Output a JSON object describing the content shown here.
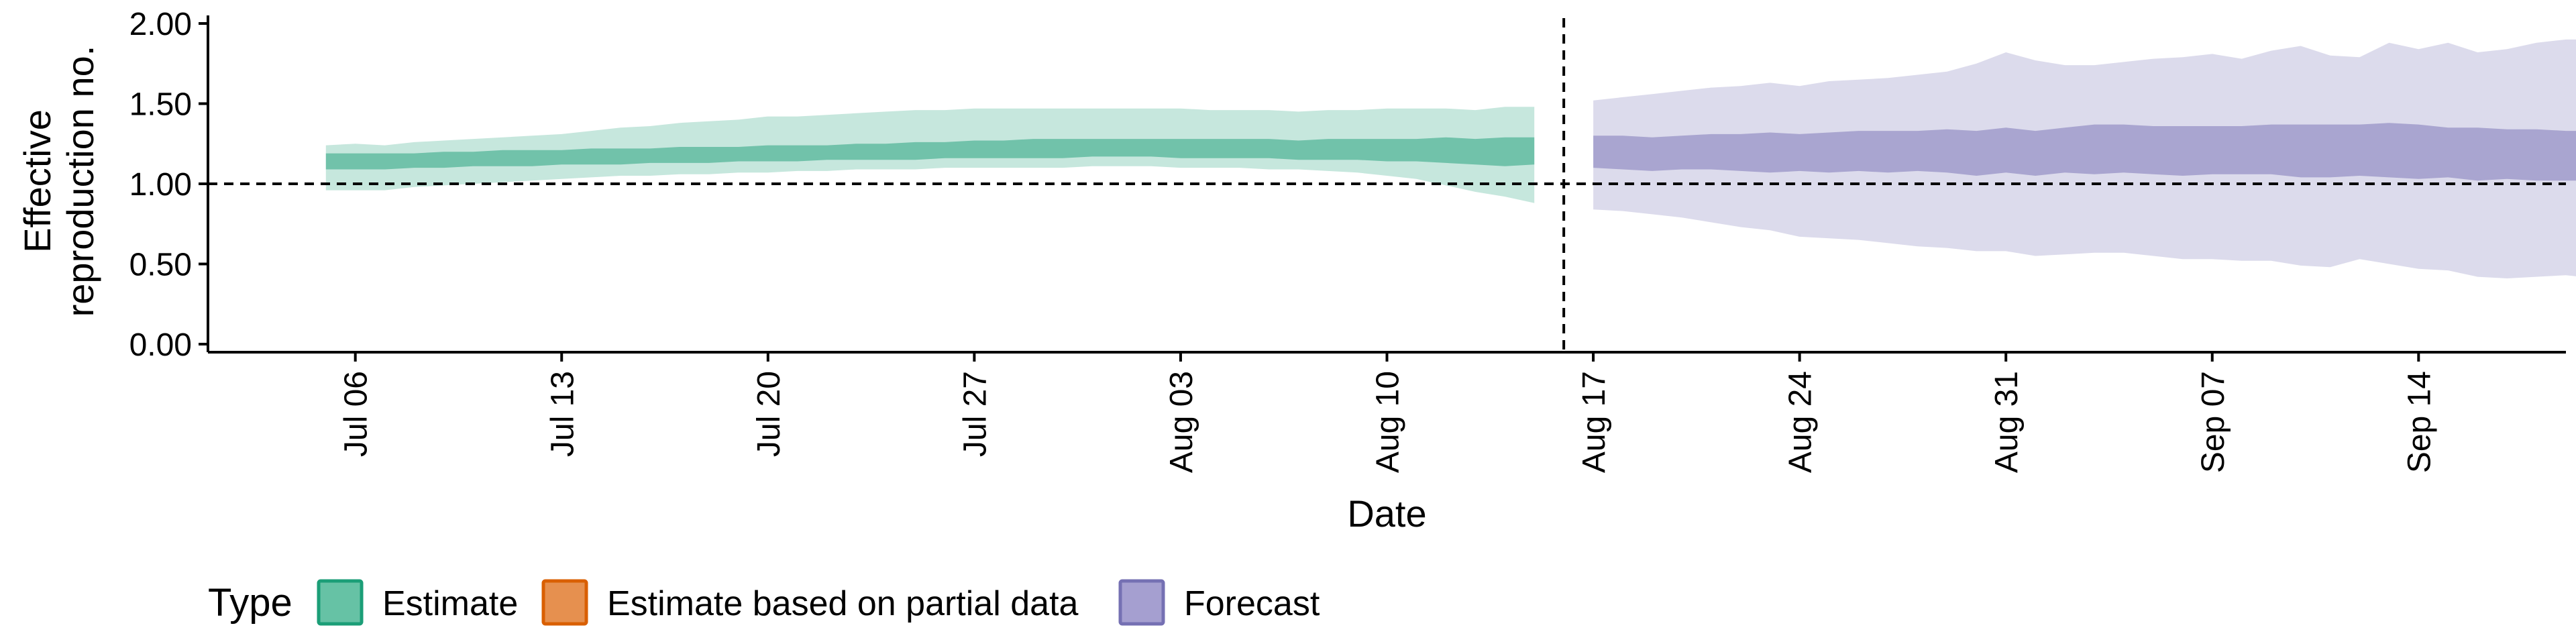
{
  "chart_data": {
    "type": "area",
    "xlabel": "Date",
    "ylabel": "Effective reproduction no.",
    "ylabel_lines": [
      "Effective",
      "reproduction no."
    ],
    "ylim": [
      0,
      2
    ],
    "y_ticks": [
      "0.00",
      "0.50",
      "1.00",
      "1.50",
      "2.00"
    ],
    "x_ticks": [
      {
        "date": "2020-07-06",
        "label": "Jul 06"
      },
      {
        "date": "2020-07-13",
        "label": "Jul 13"
      },
      {
        "date": "2020-07-20",
        "label": "Jul 20"
      },
      {
        "date": "2020-07-27",
        "label": "Jul 27"
      },
      {
        "date": "2020-08-03",
        "label": "Aug 03"
      },
      {
        "date": "2020-08-10",
        "label": "Aug 10"
      },
      {
        "date": "2020-08-17",
        "label": "Aug 17"
      },
      {
        "date": "2020-08-24",
        "label": "Aug 24"
      },
      {
        "date": "2020-08-31",
        "label": "Aug 31"
      },
      {
        "date": "2020-09-07",
        "label": "Sep 07"
      },
      {
        "date": "2020-09-14",
        "label": "Sep 14"
      }
    ],
    "x_range": [
      "2020-07-01",
      "2020-09-19"
    ],
    "reference_line_y": 1,
    "vertical_line_x": "2020-08-16",
    "legend": {
      "title": "Type",
      "position": "bottom",
      "items": [
        {
          "label": "Estimate",
          "fill": "#66c2a5",
          "stroke": "#1b9e77"
        },
        {
          "label": "Estimate based on partial data",
          "fill": "#e6904f",
          "stroke": "#d95f02"
        },
        {
          "label": "Forecast",
          "fill": "#a59fd0",
          "stroke": "#7570b3"
        }
      ]
    },
    "series": [
      {
        "name": "Estimate",
        "color": "#1b9e77",
        "start": "2020-07-05",
        "outer_lower": [
          0.96,
          0.96,
          0.96,
          0.98,
          0.99,
          1.0,
          1.01,
          1.02,
          1.03,
          1.04,
          1.05,
          1.05,
          1.06,
          1.06,
          1.07,
          1.07,
          1.08,
          1.08,
          1.09,
          1.09,
          1.09,
          1.1,
          1.1,
          1.1,
          1.1,
          1.1,
          1.11,
          1.11,
          1.11,
          1.1,
          1.1,
          1.1,
          1.09,
          1.09,
          1.08,
          1.07,
          1.05,
          1.03,
          0.99,
          0.95,
          0.92,
          0.88
        ],
        "outer_upper": [
          1.24,
          1.25,
          1.24,
          1.26,
          1.27,
          1.28,
          1.29,
          1.3,
          1.31,
          1.33,
          1.35,
          1.36,
          1.38,
          1.39,
          1.4,
          1.42,
          1.42,
          1.43,
          1.44,
          1.45,
          1.46,
          1.46,
          1.47,
          1.47,
          1.47,
          1.47,
          1.47,
          1.47,
          1.47,
          1.47,
          1.46,
          1.46,
          1.46,
          1.45,
          1.46,
          1.46,
          1.47,
          1.47,
          1.47,
          1.46,
          1.48,
          1.48
        ],
        "inner_lower": [
          1.09,
          1.09,
          1.09,
          1.1,
          1.1,
          1.11,
          1.11,
          1.11,
          1.12,
          1.12,
          1.12,
          1.13,
          1.13,
          1.13,
          1.14,
          1.14,
          1.14,
          1.15,
          1.15,
          1.15,
          1.15,
          1.16,
          1.16,
          1.16,
          1.16,
          1.16,
          1.17,
          1.17,
          1.17,
          1.16,
          1.16,
          1.16,
          1.16,
          1.15,
          1.15,
          1.15,
          1.14,
          1.14,
          1.13,
          1.12,
          1.11,
          1.12
        ],
        "inner_upper": [
          1.19,
          1.19,
          1.19,
          1.19,
          1.2,
          1.2,
          1.21,
          1.21,
          1.21,
          1.22,
          1.22,
          1.22,
          1.23,
          1.23,
          1.23,
          1.24,
          1.24,
          1.24,
          1.25,
          1.25,
          1.26,
          1.26,
          1.27,
          1.27,
          1.28,
          1.28,
          1.28,
          1.28,
          1.28,
          1.28,
          1.28,
          1.28,
          1.28,
          1.27,
          1.28,
          1.28,
          1.28,
          1.28,
          1.29,
          1.28,
          1.29,
          1.29
        ]
      },
      {
        "name": "Forecast",
        "color": "#7570b3",
        "start": "2020-08-17",
        "outer_lower": [
          0.84,
          0.83,
          0.81,
          0.79,
          0.76,
          0.73,
          0.71,
          0.67,
          0.66,
          0.65,
          0.63,
          0.61,
          0.6,
          0.58,
          0.58,
          0.55,
          0.56,
          0.57,
          0.57,
          0.55,
          0.53,
          0.53,
          0.52,
          0.52,
          0.49,
          0.48,
          0.53,
          0.5,
          0.47,
          0.46,
          0.42,
          0.41,
          0.42,
          0.43,
          0.41,
          0.41
        ],
        "outer_upper": [
          1.52,
          1.54,
          1.56,
          1.58,
          1.6,
          1.61,
          1.63,
          1.61,
          1.64,
          1.65,
          1.66,
          1.68,
          1.7,
          1.75,
          1.82,
          1.77,
          1.74,
          1.74,
          1.76,
          1.78,
          1.79,
          1.81,
          1.78,
          1.83,
          1.86,
          1.8,
          1.79,
          1.88,
          1.84,
          1.88,
          1.82,
          1.84,
          1.88,
          1.9,
          1.9,
          1.91
        ],
        "inner_lower": [
          1.1,
          1.09,
          1.08,
          1.09,
          1.09,
          1.08,
          1.07,
          1.08,
          1.07,
          1.08,
          1.07,
          1.08,
          1.07,
          1.05,
          1.07,
          1.05,
          1.07,
          1.06,
          1.07,
          1.06,
          1.05,
          1.06,
          1.06,
          1.06,
          1.04,
          1.04,
          1.05,
          1.04,
          1.03,
          1.04,
          1.02,
          1.03,
          1.02,
          1.02,
          1.02,
          1.02
        ],
        "inner_upper": [
          1.3,
          1.3,
          1.29,
          1.3,
          1.31,
          1.31,
          1.32,
          1.31,
          1.32,
          1.33,
          1.33,
          1.33,
          1.34,
          1.33,
          1.35,
          1.33,
          1.35,
          1.37,
          1.37,
          1.36,
          1.36,
          1.36,
          1.36,
          1.37,
          1.37,
          1.37,
          1.37,
          1.38,
          1.37,
          1.35,
          1.35,
          1.34,
          1.34,
          1.33,
          1.33,
          1.33
        ]
      }
    ]
  }
}
